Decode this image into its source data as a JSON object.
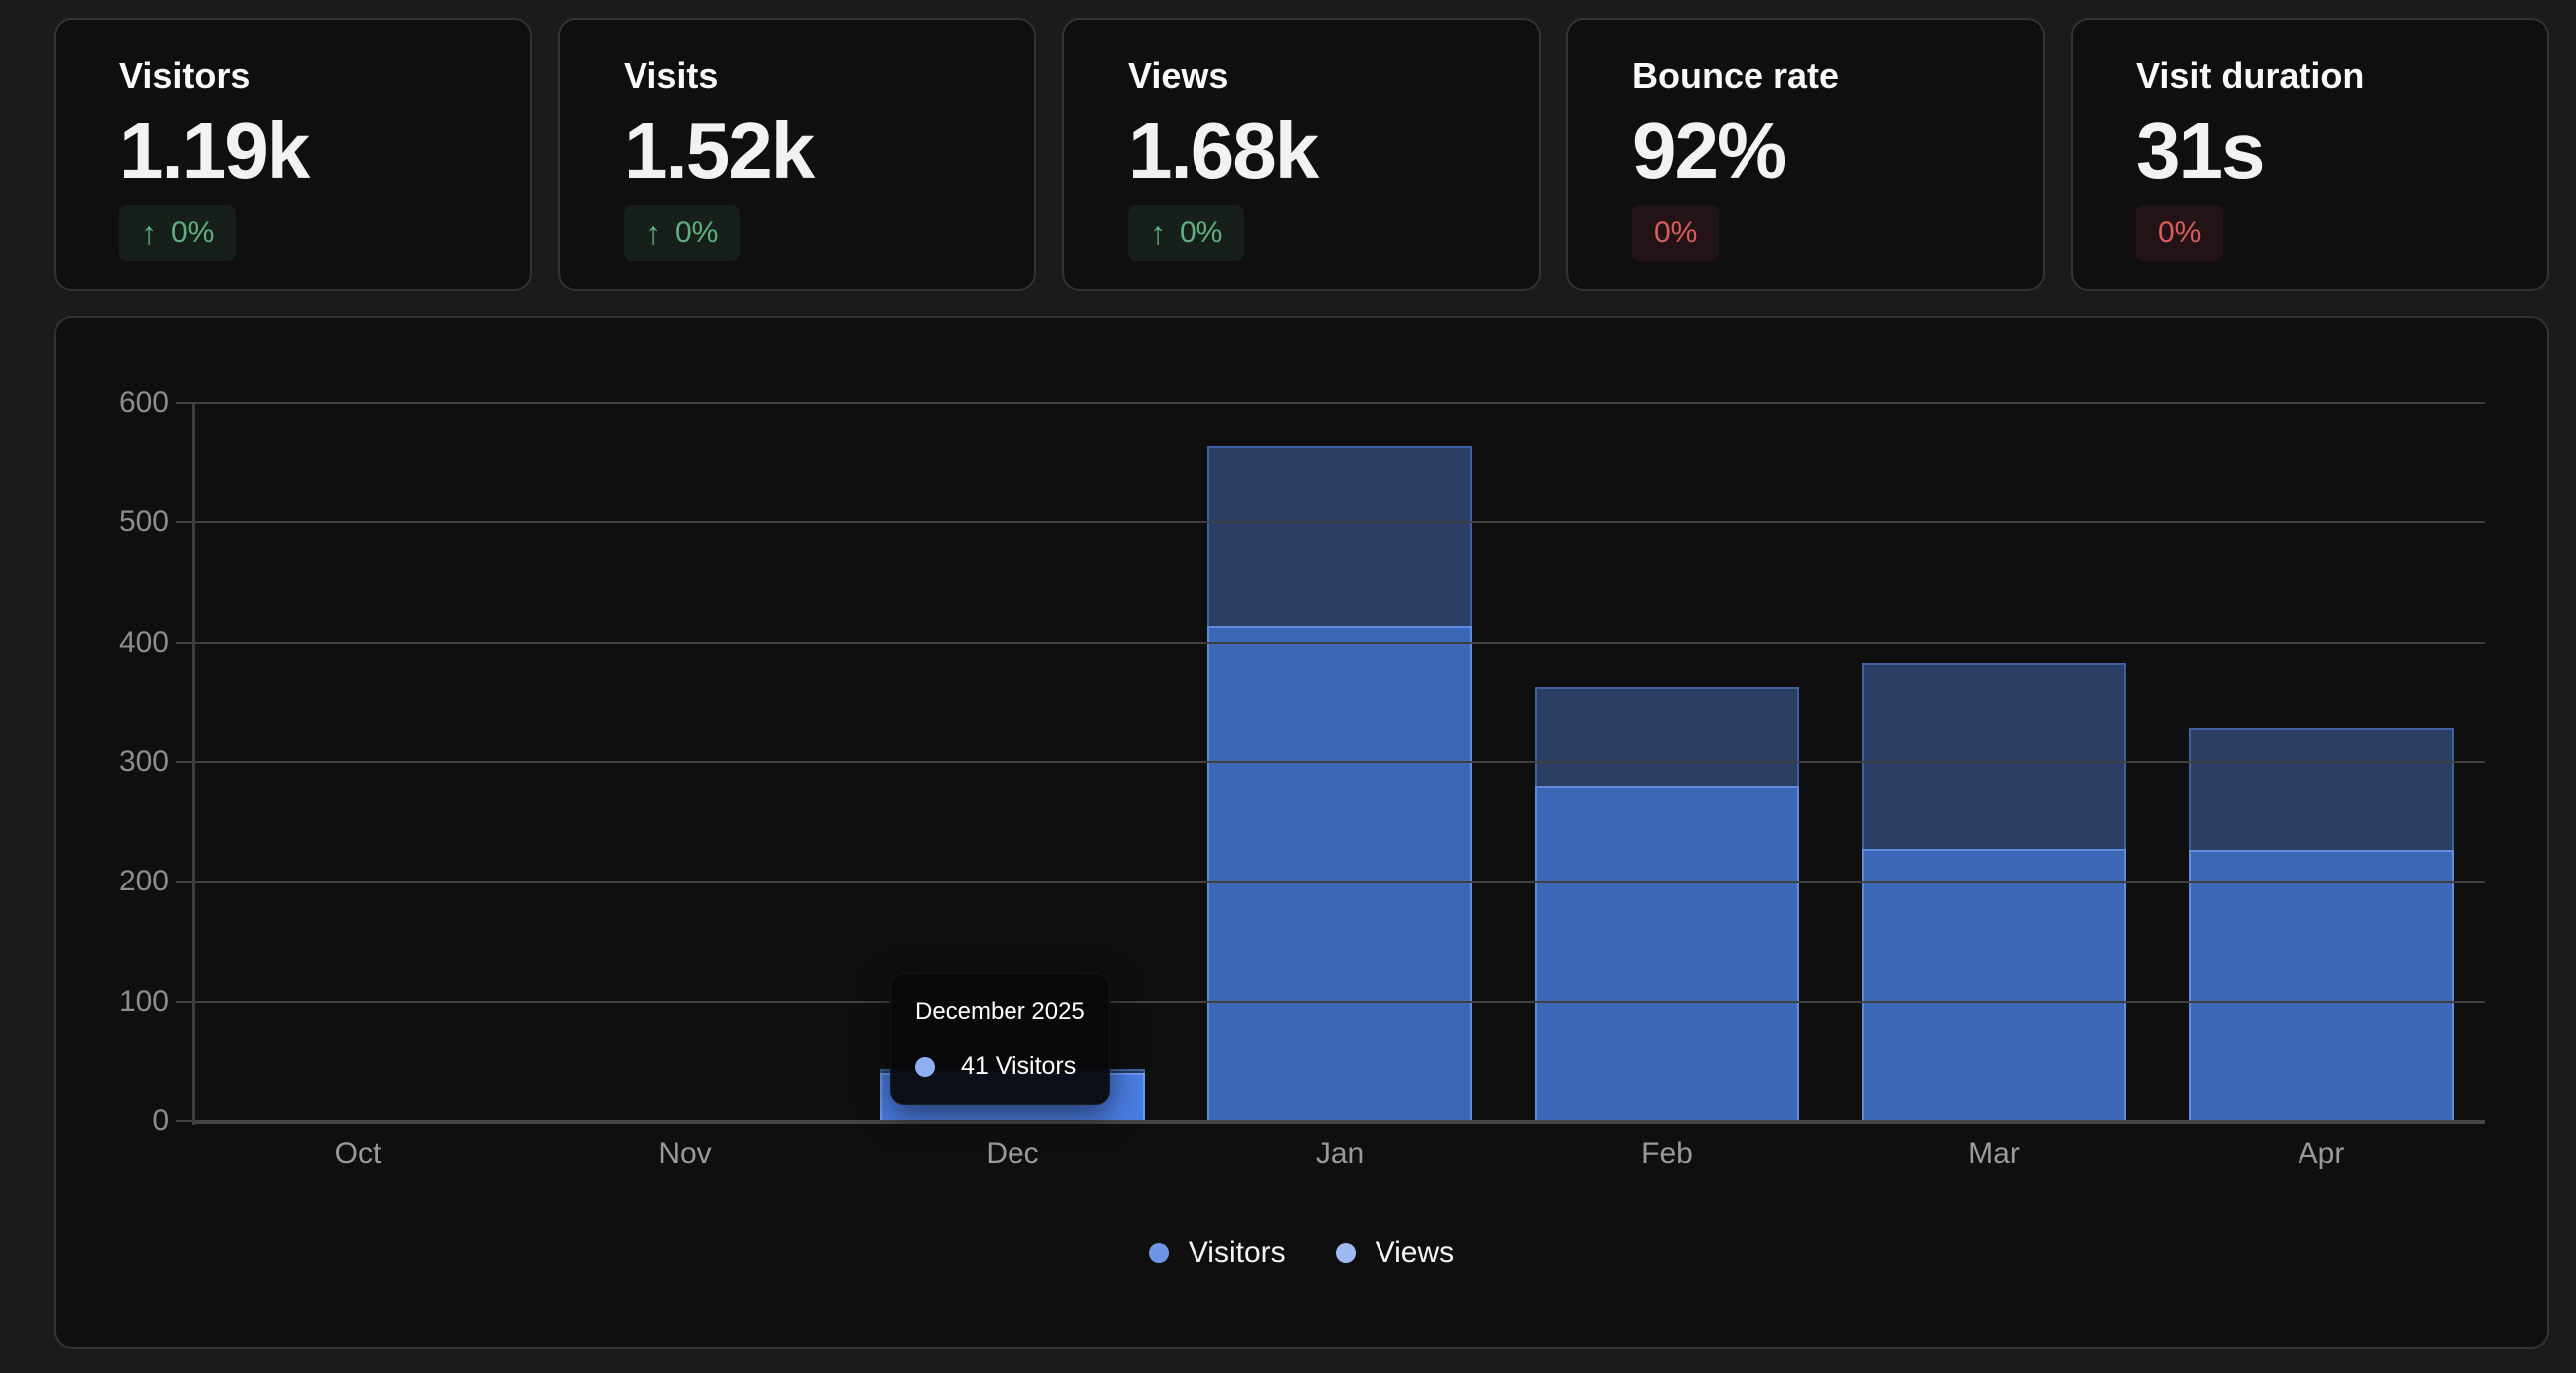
{
  "stat_cards": [
    {
      "label": "Visitors",
      "value": "1.19k",
      "change": "0%",
      "arrow": "↑",
      "sentiment": "positive"
    },
    {
      "label": "Visits",
      "value": "1.52k",
      "change": "0%",
      "arrow": "↑",
      "sentiment": "positive"
    },
    {
      "label": "Views",
      "value": "1.68k",
      "change": "0%",
      "arrow": "↑",
      "sentiment": "positive"
    },
    {
      "label": "Bounce rate",
      "value": "92%",
      "change": "0%",
      "arrow": "",
      "sentiment": "negative"
    },
    {
      "label": "Visit duration",
      "value": "31s",
      "change": "0%",
      "arrow": "",
      "sentiment": "negative"
    }
  ],
  "chart_data": {
    "type": "bar",
    "title": "",
    "xlabel": "",
    "ylabel": "",
    "categories": [
      "Oct",
      "Nov",
      "Dec",
      "Jan",
      "Feb",
      "Mar",
      "Apr"
    ],
    "series": [
      {
        "name": "Views",
        "color": "#2a3e63",
        "legend_dot_color": "#9fb9f2",
        "values": [
          0,
          0,
          44,
          564,
          362,
          383,
          328
        ]
      },
      {
        "name": "Visitors",
        "color": "#3c66b6",
        "legend_dot_color": "#6f96e6",
        "highlight_color": "#4a7de2",
        "values": [
          0,
          0,
          41,
          414,
          280,
          228,
          227
        ]
      }
    ],
    "ylim": [
      0,
      600
    ],
    "yticks": [
      0,
      100,
      200,
      300,
      400,
      500,
      600
    ],
    "grid": true,
    "legend_position": "bottom",
    "bar_style": "overlaid",
    "highlighted_category": "Dec"
  },
  "legend": {
    "items": [
      {
        "label": "Visitors",
        "dot_color": "#6f96e6"
      },
      {
        "label": "Views",
        "dot_color": "#9fb9f2"
      }
    ]
  },
  "tooltip": {
    "title": "December 2025",
    "dot_color": "#8fb0ee",
    "text": "41 Visitors"
  },
  "colors": {
    "page_bg": "#1b1b1b",
    "panel_bg": "#0f0f0f",
    "panel_border": "#333333",
    "positive_text": "#5fae7e",
    "positive_bg": "#161f1a",
    "negative_text": "#d95c5c",
    "negative_bg": "#231316",
    "bar_views": "#2a3e63",
    "bar_visitors": "#3c66b6",
    "bar_highlight": "#4a7de2",
    "gridline": "#3f3f3f",
    "axis_label": "#9a9a9a"
  }
}
